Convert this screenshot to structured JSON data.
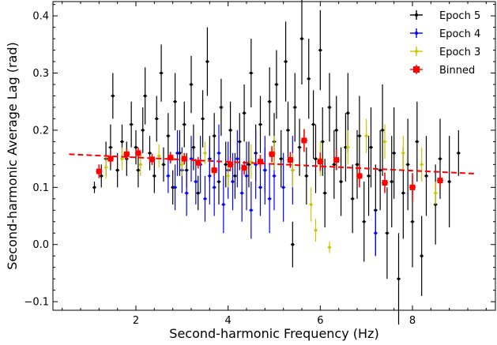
{
  "chart_data": {
    "type": "scatter",
    "xlabel": "Second-harmonic Frequency (Hz)",
    "ylabel": "Second-harmonic Average Lag (rad)",
    "xlim": [
      0.2,
      9.8
    ],
    "ylim": [
      -0.115,
      0.425
    ],
    "xticks": [
      2,
      4,
      6,
      8
    ],
    "yticks": [
      -0.1,
      0.0,
      0.1,
      0.2,
      0.3,
      0.4
    ],
    "xtick_labels": [
      "2",
      "4",
      "6",
      "8"
    ],
    "ytick_labels": [
      "−0.1",
      "0.0",
      "0.1",
      "0.2",
      "0.3",
      "0.4"
    ],
    "legend_position": "top-right",
    "series": [
      {
        "name": "Epoch 5",
        "color": "#000000",
        "marker": "circle",
        "points": [
          [
            1.1,
            0.1,
            0.01
          ],
          [
            1.25,
            0.12,
            0.02
          ],
          [
            1.35,
            0.15,
            0.03
          ],
          [
            1.45,
            0.17,
            0.04
          ],
          [
            1.5,
            0.26,
            0.04
          ],
          [
            1.6,
            0.13,
            0.03
          ],
          [
            1.7,
            0.18,
            0.03
          ],
          [
            1.8,
            0.15,
            0.03
          ],
          [
            1.9,
            0.21,
            0.04
          ],
          [
            2.0,
            0.17,
            0.03
          ],
          [
            2.05,
            0.13,
            0.03
          ],
          [
            2.15,
            0.2,
            0.04
          ],
          [
            2.2,
            0.26,
            0.05
          ],
          [
            2.3,
            0.16,
            0.03
          ],
          [
            2.4,
            0.12,
            0.03
          ],
          [
            2.45,
            0.22,
            0.04
          ],
          [
            2.55,
            0.3,
            0.05
          ],
          [
            2.6,
            0.14,
            0.03
          ],
          [
            2.7,
            0.19,
            0.04
          ],
          [
            2.8,
            0.1,
            0.03
          ],
          [
            2.85,
            0.25,
            0.05
          ],
          [
            2.95,
            0.16,
            0.04
          ],
          [
            3.05,
            0.21,
            0.04
          ],
          [
            3.1,
            0.13,
            0.03
          ],
          [
            3.2,
            0.28,
            0.05
          ],
          [
            3.25,
            0.17,
            0.04
          ],
          [
            3.35,
            0.09,
            0.03
          ],
          [
            3.45,
            0.22,
            0.05
          ],
          [
            3.55,
            0.32,
            0.06
          ],
          [
            3.6,
            0.15,
            0.04
          ],
          [
            3.7,
            0.19,
            0.04
          ],
          [
            3.8,
            0.11,
            0.04
          ],
          [
            3.85,
            0.24,
            0.05
          ],
          [
            3.95,
            0.14,
            0.04
          ],
          [
            4.05,
            0.2,
            0.05
          ],
          [
            4.15,
            0.12,
            0.04
          ],
          [
            4.25,
            0.18,
            0.05
          ],
          [
            4.35,
            0.23,
            0.05
          ],
          [
            4.45,
            0.14,
            0.04
          ],
          [
            4.5,
            0.3,
            0.06
          ],
          [
            4.6,
            0.16,
            0.05
          ],
          [
            4.7,
            0.21,
            0.05
          ],
          [
            4.8,
            0.13,
            0.04
          ],
          [
            4.9,
            0.25,
            0.06
          ],
          [
            5.0,
            0.18,
            0.05
          ],
          [
            5.05,
            0.28,
            0.06
          ],
          [
            5.15,
            0.15,
            0.05
          ],
          [
            5.25,
            0.32,
            0.07
          ],
          [
            5.3,
            0.2,
            0.05
          ],
          [
            5.4,
            0.0,
            0.04
          ],
          [
            5.45,
            0.24,
            0.06
          ],
          [
            5.55,
            0.17,
            0.05
          ],
          [
            5.6,
            0.36,
            0.08
          ],
          [
            5.7,
            0.12,
            0.05
          ],
          [
            5.75,
            0.29,
            0.07
          ],
          [
            5.85,
            0.21,
            0.06
          ],
          [
            5.9,
            0.15,
            0.06
          ],
          [
            6.0,
            0.34,
            0.07
          ],
          [
            6.05,
            0.18,
            0.06
          ],
          [
            6.1,
            0.09,
            0.06
          ],
          [
            6.2,
            0.24,
            0.06
          ],
          [
            6.3,
            0.14,
            0.06
          ],
          [
            6.35,
            0.2,
            0.06
          ],
          [
            6.45,
            0.11,
            0.06
          ],
          [
            6.55,
            0.17,
            0.06
          ],
          [
            6.6,
            0.23,
            0.07
          ],
          [
            6.7,
            0.08,
            0.06
          ],
          [
            6.8,
            0.14,
            0.06
          ],
          [
            6.85,
            0.19,
            0.07
          ],
          [
            6.95,
            0.04,
            0.07
          ],
          [
            7.05,
            0.12,
            0.07
          ],
          [
            7.1,
            0.17,
            0.07
          ],
          [
            7.2,
            0.06,
            0.08
          ],
          [
            7.3,
            0.13,
            0.07
          ],
          [
            7.35,
            0.2,
            0.08
          ],
          [
            7.45,
            0.02,
            0.08
          ],
          [
            7.55,
            0.11,
            0.08
          ],
          [
            7.6,
            0.16,
            0.08
          ],
          [
            7.7,
            -0.06,
            0.08
          ],
          [
            7.8,
            0.09,
            0.08
          ],
          [
            7.9,
            0.14,
            0.08
          ],
          [
            8.0,
            0.04,
            0.08
          ],
          [
            8.1,
            0.18,
            0.07
          ],
          [
            8.2,
            -0.02,
            0.07
          ],
          [
            8.3,
            0.12,
            0.07
          ],
          [
            8.5,
            0.07,
            0.07
          ],
          [
            8.6,
            0.15,
            0.07
          ],
          [
            8.8,
            0.11,
            0.08
          ],
          [
            9.0,
            0.16,
            0.04
          ]
        ]
      },
      {
        "name": "Epoch 4",
        "color": "#0000ff",
        "marker": "circle",
        "points": [
          [
            2.7,
            0.12,
            0.03
          ],
          [
            2.85,
            0.1,
            0.04
          ],
          [
            2.9,
            0.16,
            0.04
          ],
          [
            3.0,
            0.13,
            0.04
          ],
          [
            3.1,
            0.09,
            0.04
          ],
          [
            3.2,
            0.15,
            0.04
          ],
          [
            3.3,
            0.11,
            0.04
          ],
          [
            3.4,
            0.14,
            0.05
          ],
          [
            3.5,
            0.08,
            0.04
          ],
          [
            3.6,
            0.12,
            0.05
          ],
          [
            3.7,
            0.1,
            0.05
          ],
          [
            3.8,
            0.16,
            0.05
          ],
          [
            3.9,
            0.07,
            0.05
          ],
          [
            4.0,
            0.13,
            0.05
          ],
          [
            4.1,
            0.11,
            0.05
          ],
          [
            4.2,
            0.15,
            0.05
          ],
          [
            4.3,
            0.09,
            0.05
          ],
          [
            4.4,
            0.12,
            0.06
          ],
          [
            4.5,
            0.06,
            0.05
          ],
          [
            4.6,
            0.14,
            0.06
          ],
          [
            4.7,
            0.1,
            0.05
          ],
          [
            4.8,
            0.13,
            0.06
          ],
          [
            4.9,
            0.08,
            0.06
          ],
          [
            5.0,
            0.12,
            0.06
          ],
          [
            5.2,
            0.1,
            0.06
          ],
          [
            5.4,
            0.13,
            0.06
          ],
          [
            7.2,
            0.02,
            0.04
          ]
        ]
      },
      {
        "name": "Epoch 3",
        "color": "#c8c800",
        "marker": "circle",
        "points": [
          [
            1.35,
            0.135,
            0.02
          ],
          [
            1.7,
            0.15,
            0.02
          ],
          [
            2.1,
            0.14,
            0.02
          ],
          [
            2.5,
            0.155,
            0.02
          ],
          [
            3.0,
            0.14,
            0.02
          ],
          [
            3.5,
            0.16,
            0.02
          ],
          [
            4.0,
            0.12,
            0.02
          ],
          [
            4.5,
            0.145,
            0.03
          ],
          [
            5.0,
            0.16,
            0.03
          ],
          [
            5.4,
            0.13,
            0.03
          ],
          [
            5.8,
            0.07,
            0.03
          ],
          [
            5.9,
            0.025,
            0.02
          ],
          [
            6.0,
            0.15,
            0.03
          ],
          [
            6.2,
            -0.005,
            0.01
          ],
          [
            6.6,
            0.17,
            0.03
          ],
          [
            7.0,
            0.19,
            0.03
          ],
          [
            7.4,
            0.18,
            0.03
          ],
          [
            7.8,
            0.16,
            0.03
          ],
          [
            8.2,
            0.14,
            0.03
          ],
          [
            8.5,
            0.09,
            0.02
          ]
        ]
      },
      {
        "name": "Binned",
        "color": "#ff0000",
        "marker": "square",
        "points": [
          [
            1.2,
            0.128,
            0.012
          ],
          [
            1.45,
            0.15,
            0.012
          ],
          [
            1.8,
            0.158,
            0.01
          ],
          [
            2.05,
            0.16,
            0.01
          ],
          [
            2.35,
            0.149,
            0.01
          ],
          [
            2.75,
            0.152,
            0.01
          ],
          [
            3.05,
            0.15,
            0.01
          ],
          [
            3.35,
            0.143,
            0.01
          ],
          [
            3.7,
            0.13,
            0.01
          ],
          [
            4.05,
            0.14,
            0.012
          ],
          [
            4.35,
            0.134,
            0.012
          ],
          [
            4.7,
            0.145,
            0.012
          ],
          [
            4.95,
            0.158,
            0.014
          ],
          [
            5.35,
            0.148,
            0.014
          ],
          [
            5.65,
            0.182,
            0.02
          ],
          [
            6.0,
            0.145,
            0.016
          ],
          [
            6.35,
            0.148,
            0.018
          ],
          [
            6.85,
            0.12,
            0.02
          ],
          [
            7.4,
            0.108,
            0.018
          ],
          [
            8.0,
            0.1,
            0.025
          ],
          [
            8.6,
            0.112,
            0.012
          ]
        ]
      }
    ],
    "fit_line": {
      "style": "dashed",
      "color": "#ff0000",
      "x": [
        0.55,
        9.35
      ],
      "y": [
        0.158,
        0.124
      ]
    }
  }
}
